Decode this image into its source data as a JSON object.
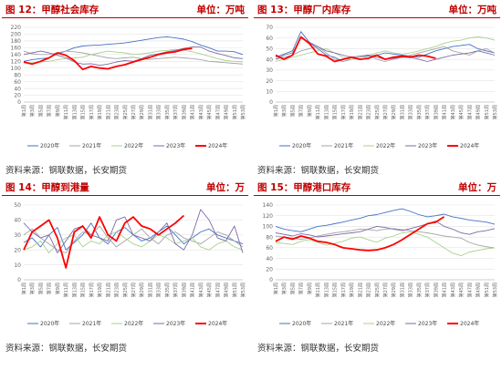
{
  "colors": {
    "accent": "#c00000",
    "s2020": "#4472c4",
    "s2021": "#a5a5a5",
    "s2022": "#a9d18e",
    "s2023": "#7e6aa6",
    "s2024": "#ff0000"
  },
  "panels": [
    {
      "title": "图 12：甲醇社会库存",
      "unit": "单位：万吨",
      "source": "资料来源：钢联数据，长安期货",
      "chart_data": {
        "type": "line",
        "title": "图 12：甲醇社会库存",
        "unit": "单位：万吨",
        "ylim": [
          0,
          220
        ],
        "yticks": [
          0,
          20,
          40,
          60,
          80,
          100,
          120,
          140,
          160,
          180,
          200,
          220
        ],
        "x": [
          "第1周",
          "第3周",
          "第5周",
          "第7周",
          "第9周",
          "第11周",
          "第13周",
          "第15周",
          "第17周",
          "第19周",
          "第21周",
          "第23周",
          "第25周",
          "第27周",
          "第29周",
          "第31周",
          "第33周",
          "第35周",
          "第37周",
          "第39周",
          "第41周",
          "第43周",
          "第45周",
          "第47周",
          "第49周",
          "第51周",
          "第53周"
        ],
        "grid": true,
        "legend": "bottom",
        "series": [
          {
            "name": "2020年",
            "values": [
              120,
              125,
              128,
              130,
              142,
              150,
              160,
              165,
              167,
              168,
              170,
              172,
              174,
              178,
              182,
              186,
              190,
              192,
              189,
              185,
              178,
              168,
              160,
              150,
              150,
              148,
              140
            ]
          },
          {
            "name": "2021年",
            "values": [
              150,
              142,
              140,
              140,
              145,
              150,
              148,
              145,
              140,
              135,
              130,
              128,
              130,
              132,
              128,
              126,
              128,
              130,
              132,
              130,
              128,
              125,
              120,
              118,
              116,
              114,
              112
            ]
          },
          {
            "name": "2022年",
            "values": [
              115,
              116,
              118,
              120,
              125,
              128,
              130,
              132,
              140,
              145,
              150,
              147,
              145,
              140,
              142,
              145,
              150,
              152,
              155,
              152,
              148,
              142,
              135,
              128,
              122,
              120,
              118
            ]
          },
          {
            "name": "2023年",
            "values": [
              140,
              145,
              150,
              145,
              138,
              130,
              118,
              112,
              113,
              108,
              112,
              118,
              122,
              120,
              128,
              138,
              142,
              148,
              152,
              158,
              162,
              162,
              150,
              143,
              137,
              130,
              128
            ]
          },
          {
            "name": "2024年",
            "values": [
              118,
              112,
              120,
              130,
              145,
              138,
              122,
              96,
              105,
              100,
              98,
              105,
              110,
              118,
              125,
              132,
              140,
              145,
              148,
              155,
              158,
              null,
              null,
              null,
              null,
              null,
              null
            ]
          }
        ]
      }
    },
    {
      "title": "图 13：甲醇厂内库存",
      "unit": "单位：万吨",
      "source": "资料来源：钢联数据，长安期货",
      "chart_data": {
        "type": "line",
        "title": "图 13：甲醇厂内库存",
        "unit": "单位：万吨",
        "ylim": [
          0,
          70
        ],
        "yticks": [
          0,
          10,
          20,
          30,
          40,
          50,
          60,
          70
        ],
        "x": [
          "第1周",
          "第3周",
          "第5周",
          "第7周",
          "第9周",
          "第11周",
          "第13周",
          "第15周",
          "第17周",
          "第19周",
          "第21周",
          "第23周",
          "第25周",
          "第27周",
          "第29周",
          "第31周",
          "第33周",
          "第35周",
          "第37周",
          "第39周",
          "第41周",
          "第43周",
          "第45周",
          "第47周",
          "第49周",
          "第51周",
          "第53周"
        ],
        "grid": true,
        "legend": "bottom",
        "series": [
          {
            "name": "2020年",
            "values": [
              42,
              45,
              48,
              66,
              56,
              50,
              44,
              42,
              38,
              40,
              42,
              43,
              44,
              46,
              45,
              44,
              43,
              42,
              45,
              48,
              50,
              52,
              53,
              54,
              50,
              48,
              46
            ]
          },
          {
            "name": "2021年",
            "values": [
              40,
              42,
              44,
              48,
              50,
              52,
              46,
              40,
              38,
              40,
              42,
              44,
              40,
              38,
              40,
              42,
              44,
              46,
              48,
              50,
              52,
              48,
              46,
              44,
              48,
              50,
              46
            ]
          },
          {
            "name": "2022年",
            "values": [
              38,
              40,
              42,
              44,
              46,
              48,
              50,
              46,
              42,
              40,
              42,
              44,
              46,
              48,
              46,
              45,
              46,
              48,
              50,
              52,
              55,
              57,
              58,
              60,
              61,
              60,
              58
            ]
          },
          {
            "name": "2023年",
            "values": [
              40,
              44,
              46,
              60,
              56,
              52,
              48,
              46,
              44,
              42,
              43,
              44,
              42,
              40,
              41,
              42,
              42,
              40,
              38,
              40,
              42,
              44,
              45,
              46,
              48,
              46,
              44
            ]
          },
          {
            "name": "2024年",
            "values": [
              44,
              40,
              44,
              61,
              55,
              45,
              43,
              38,
              40,
              42,
              40,
              41,
              44,
              40,
              42,
              43,
              42,
              44,
              43,
              41,
              null,
              null,
              null,
              null,
              null,
              null,
              null
            ]
          }
        ]
      }
    },
    {
      "title": "图 14：甲醇到港量",
      "unit": "单位：万",
      "source": "资料来源：钢联数据，长安期货",
      "chart_data": {
        "type": "line",
        "title": "图 14：甲醇到港量",
        "unit": "单位：万",
        "ylim": [
          0,
          50
        ],
        "yticks": [
          0,
          10,
          20,
          30,
          40,
          50
        ],
        "x": [
          "第1周",
          "第3周",
          "第5周",
          "第7周",
          "第9周",
          "第11周",
          "第13周",
          "第15周",
          "第17周",
          "第19周",
          "第21周",
          "第23周",
          "第25周",
          "第27周",
          "第29周",
          "第31周",
          "第33周",
          "第35周",
          "第37周",
          "第39周",
          "第41周",
          "第43周",
          "第45周",
          "第47周",
          "第49周",
          "第51周",
          "第53周"
        ],
        "grid": true,
        "legend": "bottom",
        "series": [
          {
            "name": "2020年",
            "values": [
              25,
              28,
              22,
              30,
              35,
              20,
              25,
              30,
              38,
              28,
              24,
              32,
              35,
              30,
              26,
              28,
              32,
              36,
              30,
              24,
              28,
              32,
              34,
              30,
              28,
              26,
              24
            ]
          },
          {
            "name": "2021年",
            "values": [
              30,
              34,
              28,
              24,
              20,
              18,
              26,
              32,
              30,
              36,
              28,
              22,
              26,
              30,
              34,
              28,
              24,
              30,
              32,
              28,
              26,
              24,
              28,
              32,
              30,
              26,
              22
            ]
          },
          {
            "name": "2022年",
            "values": [
              20,
              22,
              26,
              18,
              24,
              28,
              30,
              22,
              26,
              24,
              30,
              32,
              28,
              24,
              22,
              26,
              30,
              28,
              24,
              26,
              28,
              22,
              20,
              24,
              26,
              22,
              20
            ]
          },
          {
            "name": "2023年",
            "values": [
              38,
              32,
              28,
              30,
              18,
              26,
              34,
              36,
              30,
              28,
              26,
              40,
              42,
              30,
              28,
              26,
              32,
              38,
              24,
              20,
              30,
              47,
              40,
              28,
              26,
              36,
              18
            ]
          },
          {
            "name": "2024年",
            "values": [
              20,
              32,
              36,
              40,
              28,
              8,
              32,
              36,
              28,
              42,
              30,
              26,
              38,
              42,
              36,
              34,
              30,
              34,
              38,
              43,
              null,
              null,
              null,
              null,
              null,
              null,
              null
            ]
          }
        ]
      }
    },
    {
      "title": "图 15：甲醇港口库存",
      "unit": "单位：万",
      "source": "资料来源：钢联数据，长安期货",
      "chart_data": {
        "type": "line",
        "title": "图 15：甲醇港口库存",
        "unit": "单位：万",
        "ylim": [
          0,
          140
        ],
        "yticks": [
          0,
          20,
          40,
          60,
          80,
          100,
          120,
          140
        ],
        "x": [
          "第1周",
          "第3周",
          "第5周",
          "第7周",
          "第9周",
          "第11周",
          "第13周",
          "第15周",
          "第17周",
          "第19周",
          "第21周",
          "第23周",
          "第25周",
          "第27周",
          "第29周",
          "第31周",
          "第33周",
          "第35周",
          "第37周",
          "第39周",
          "第41周",
          "第43周",
          "第45周",
          "第47周",
          "第49周",
          "第51周",
          "第53周"
        ],
        "grid": true,
        "legend": "bottom",
        "series": [
          {
            "name": "2020年",
            "values": [
              100,
              95,
              92,
              90,
              95,
              100,
              102,
              105,
              108,
              112,
              115,
              120,
              122,
              126,
              130,
              133,
              128,
              122,
              118,
              120,
              123,
              118,
              115,
              112,
              110,
              108,
              104
            ]
          },
          {
            "name": "2021年",
            "values": [
              82,
              80,
              78,
              76,
              78,
              82,
              85,
              88,
              90,
              92,
              95,
              94,
              92,
              95,
              96,
              94,
              92,
              90,
              88,
              85,
              82,
              80,
              78,
              70,
              65,
              62,
              60
            ]
          },
          {
            "name": "2022年",
            "values": [
              70,
              68,
              66,
              72,
              75,
              70,
              65,
              68,
              72,
              78,
              80,
              75,
              70,
              78,
              82,
              88,
              90,
              85,
              80,
              70,
              60,
              50,
              45,
              52,
              55,
              58,
              60
            ]
          },
          {
            "name": "2023年",
            "values": [
              88,
              85,
              82,
              86,
              84,
              80,
              82,
              84,
              86,
              88,
              90,
              95,
              100,
              98,
              95,
              92,
              96,
              100,
              105,
              110,
              100,
              95,
              88,
              85,
              90,
              92,
              96
            ]
          },
          {
            "name": "2024年",
            "values": [
              72,
              80,
              76,
              82,
              78,
              72,
              70,
              66,
              60,
              58,
              56,
              55,
              56,
              60,
              66,
              75,
              85,
              95,
              105,
              108,
              118,
              null,
              null,
              null,
              null,
              null,
              null
            ]
          }
        ]
      }
    }
  ]
}
